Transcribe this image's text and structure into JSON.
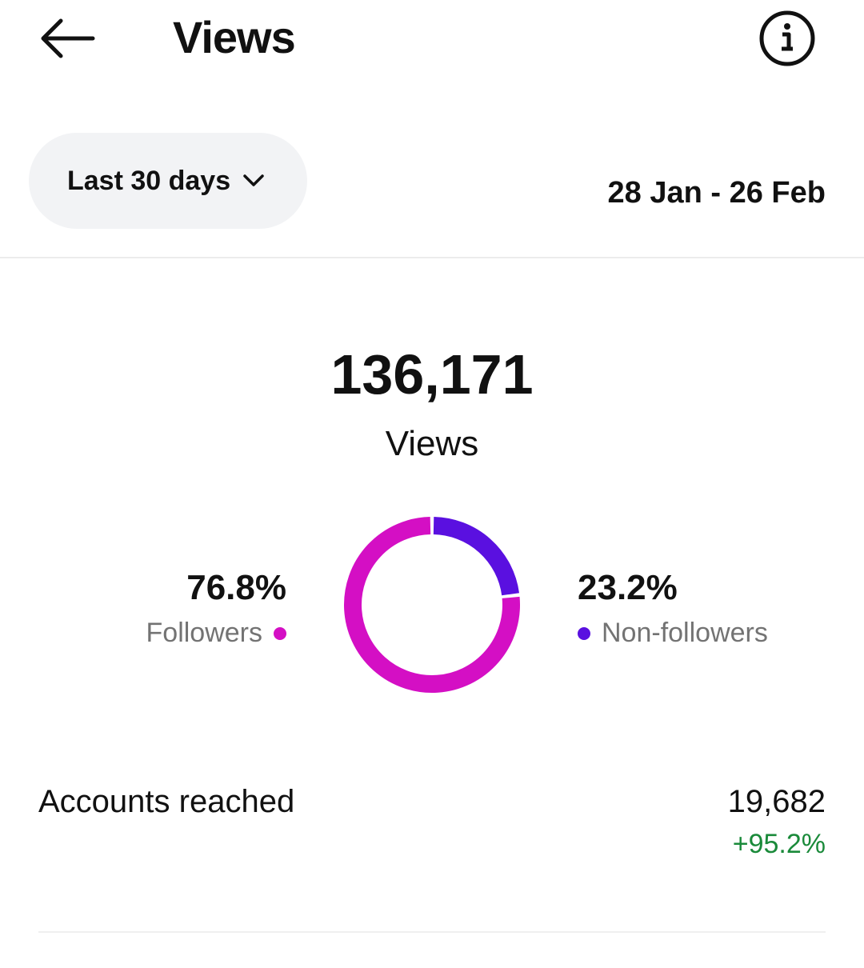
{
  "header": {
    "title": "Views",
    "back_icon": "arrow-left-icon",
    "info_icon": "info-icon"
  },
  "filter": {
    "range_label": "Last 30 days",
    "date_range": "28 Jan - 26 Feb"
  },
  "summary": {
    "total": "136,171",
    "label": "Views"
  },
  "chart_data": {
    "type": "pie",
    "categories": [
      "Followers",
      "Non-followers"
    ],
    "values": [
      76.8,
      23.2
    ],
    "labels": [
      "76.8%",
      "23.2%"
    ],
    "colors": {
      "followers": "#d40fc4",
      "non_followers": "#5a10e0"
    }
  },
  "breakdown": {
    "followers": {
      "pct": "76.8%",
      "label": "Followers"
    },
    "non_followers": {
      "pct": "23.2%",
      "label": "Non-followers"
    }
  },
  "metrics": {
    "accounts_reached": {
      "label": "Accounts reached",
      "value": "19,682",
      "change": "+95.2%",
      "change_color": "#1a8a3a"
    }
  }
}
